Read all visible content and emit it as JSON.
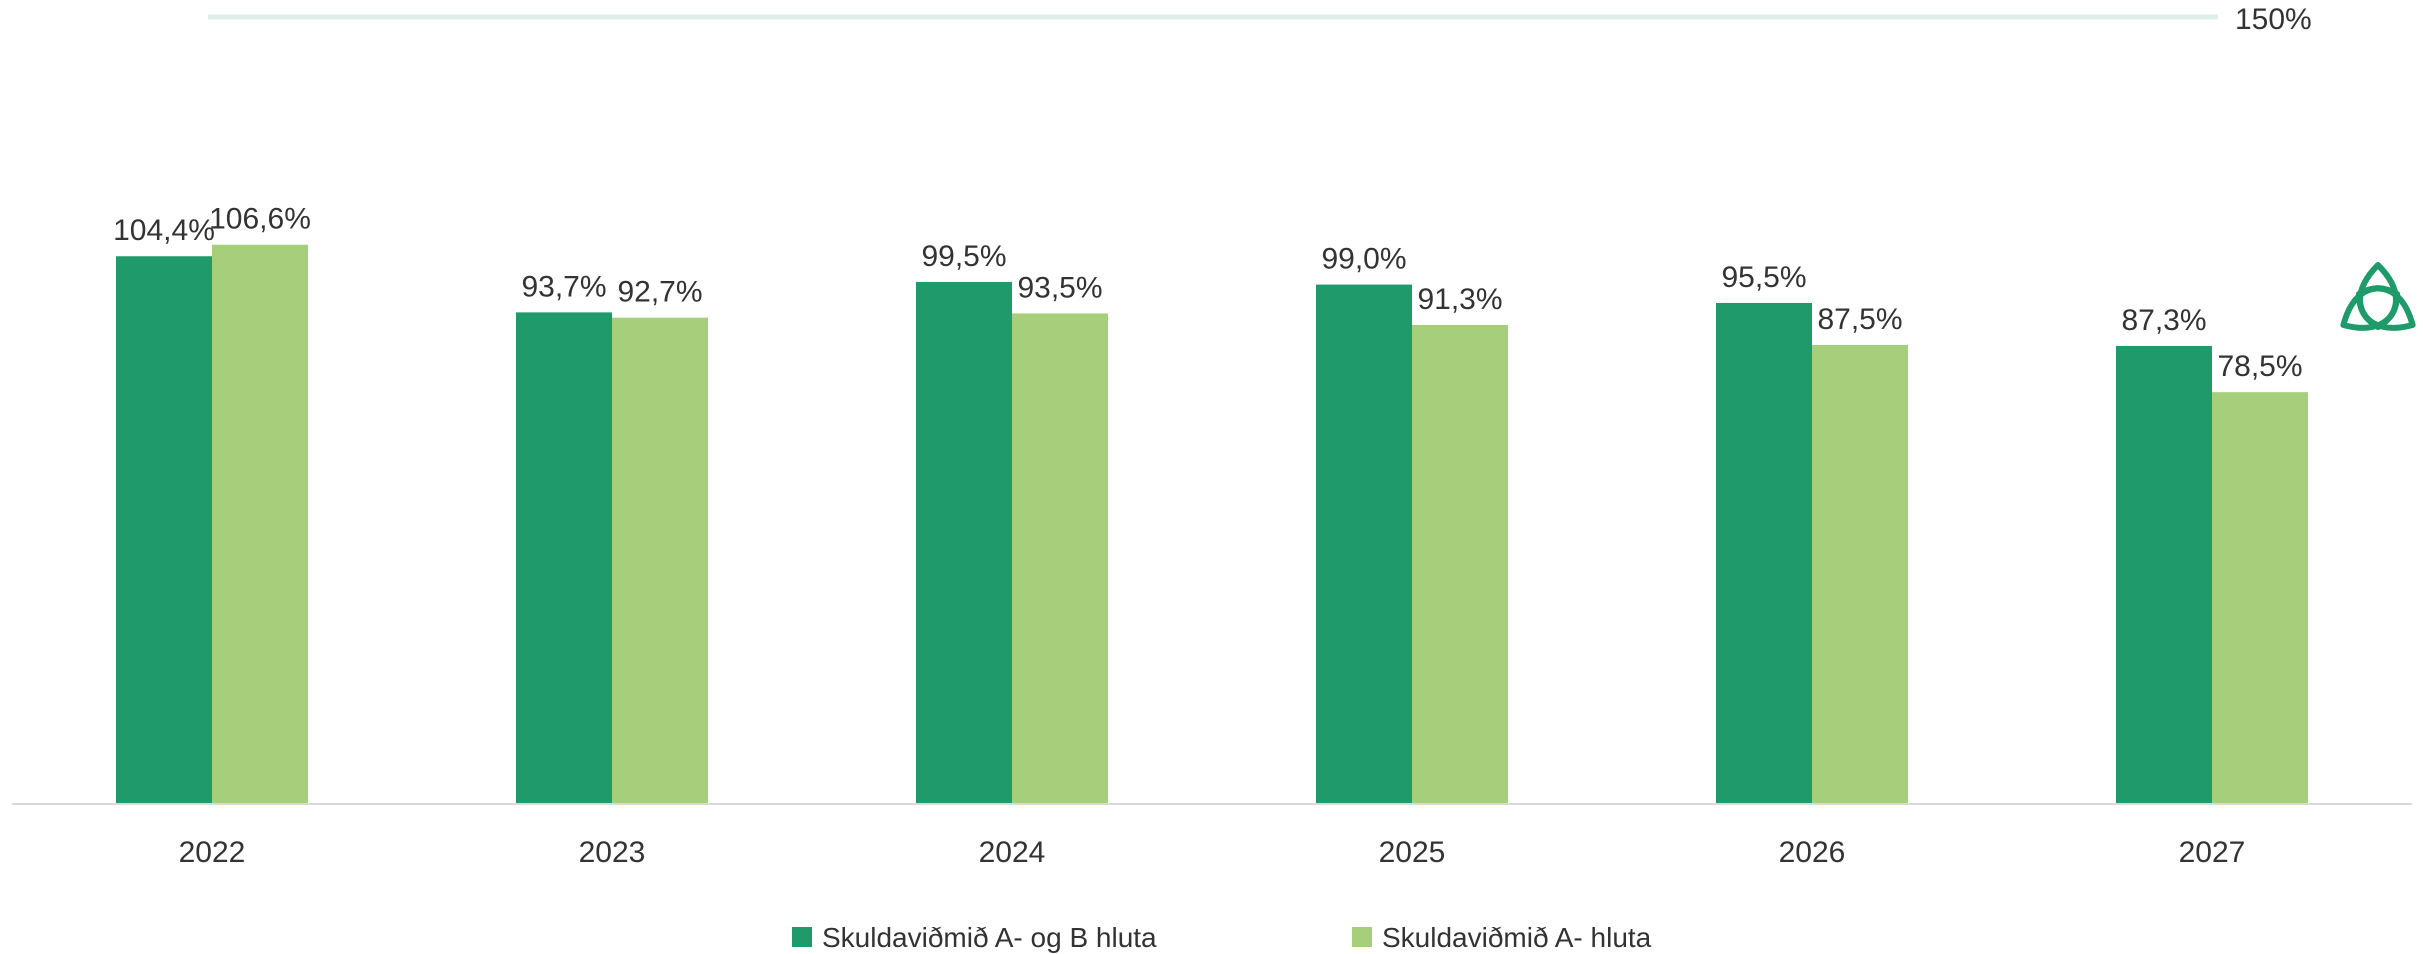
{
  "chart_data": {
    "type": "bar",
    "categories": [
      "2022",
      "2023",
      "2024",
      "2025",
      "2026",
      "2027"
    ],
    "series": [
      {
        "name": "Skuldaviðmið A- og B hluta",
        "color": "#1f9a6a",
        "values": [
          104.4,
          93.7,
          99.5,
          99.0,
          95.5,
          87.3
        ],
        "labels": [
          "104,4%",
          "93,7%",
          "99,5%",
          "99,0%",
          "95,5%",
          "87,3%"
        ]
      },
      {
        "name": "Skuldaviðmið A- hluta",
        "color": "#a5cf7a",
        "values": [
          106.6,
          92.7,
          93.5,
          91.3,
          87.5,
          78.5
        ],
        "labels": [
          "106,6%",
          "92,7%",
          "93,5%",
          "91,3%",
          "87,5%",
          "78,5%"
        ]
      }
    ],
    "reference_line": {
      "value": 150,
      "label": "150%",
      "color": "#dcefe7"
    },
    "ylim": [
      0,
      150
    ],
    "title": "",
    "xlabel": "",
    "ylabel": "",
    "legend_position": "bottom",
    "grid": false
  },
  "logo": {
    "icon": "trefoil-logo-icon",
    "color": "#1f9a6a"
  }
}
